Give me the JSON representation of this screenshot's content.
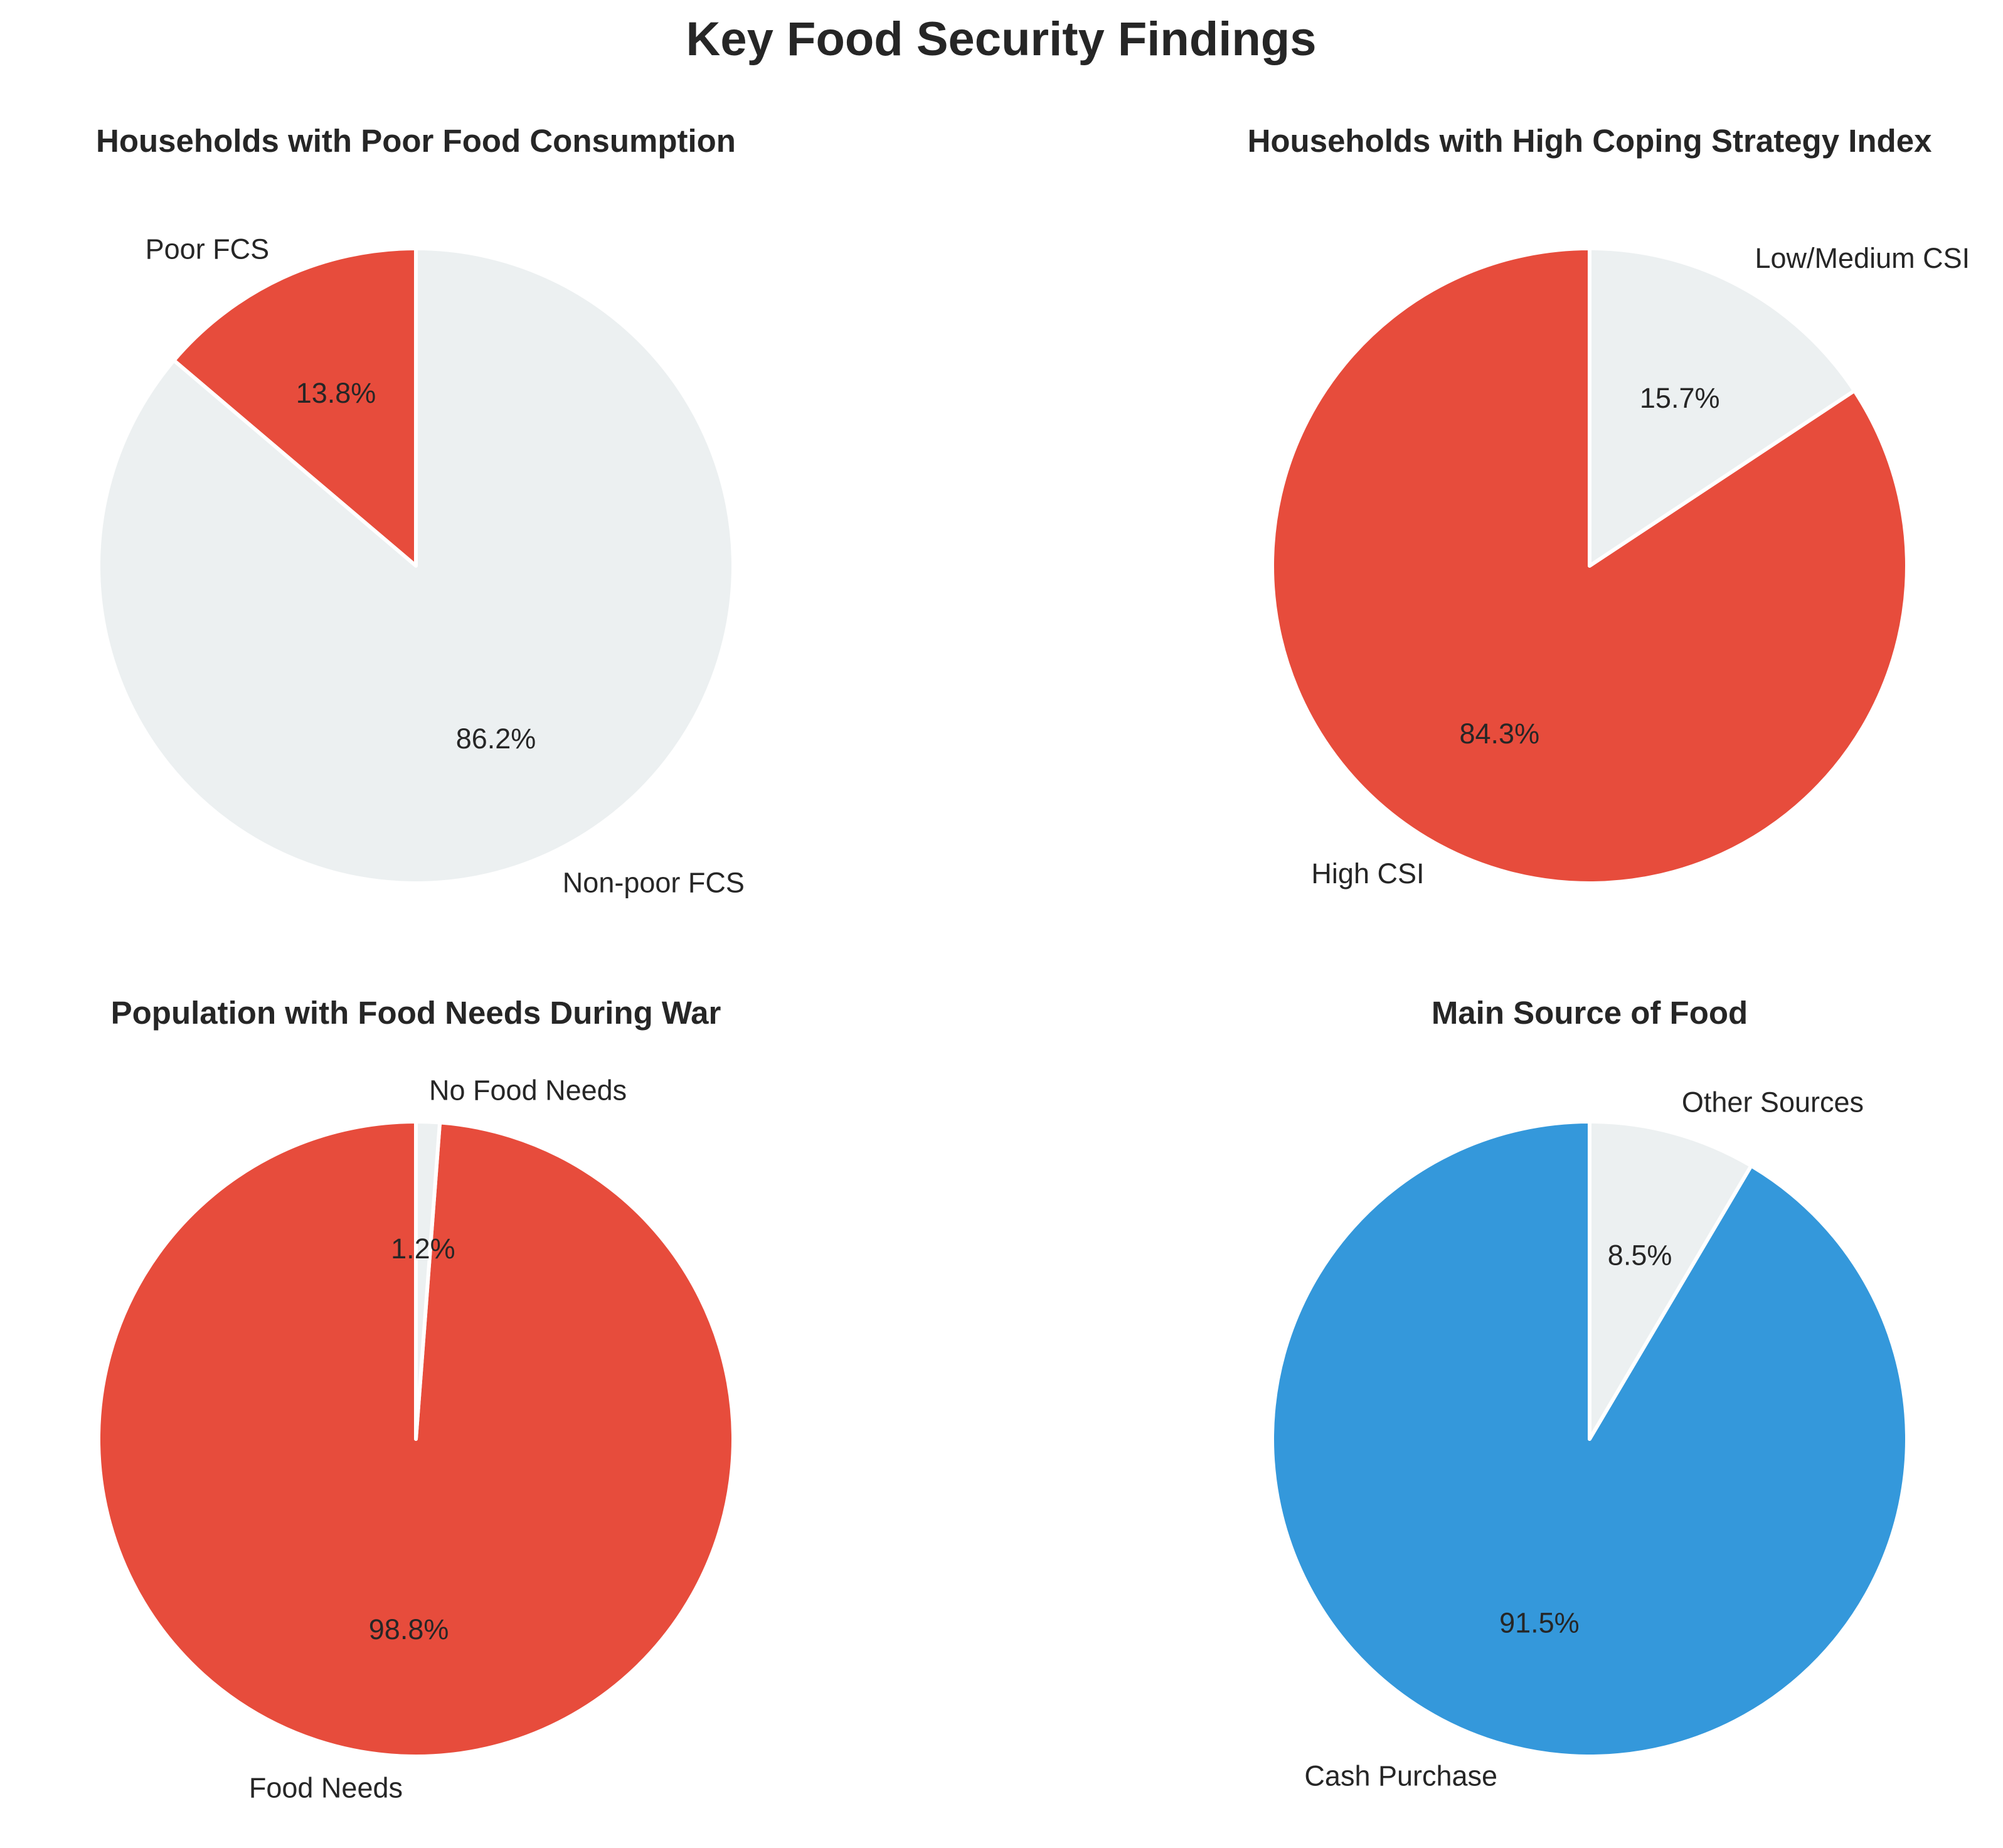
{
  "title": "Key Food Security Findings",
  "chart_data": [
    {
      "type": "pie",
      "title": "Households with Poor Food Consumption",
      "labels": [
        "Poor FCS",
        "Non-poor FCS"
      ],
      "values": [
        13.8,
        86.2
      ],
      "value_labels": [
        "13.8%",
        "86.2%"
      ],
      "colors": [
        "#e74c3c",
        "#ecf0f1"
      ],
      "start_angle_deg": 90,
      "direction": "counterclockwise"
    },
    {
      "type": "pie",
      "title": "Households with High Coping Strategy Index",
      "labels": [
        "High CSI",
        "Low/Medium CSI"
      ],
      "values": [
        84.3,
        15.7
      ],
      "value_labels": [
        "84.3%",
        "15.7%"
      ],
      "colors": [
        "#e74c3c",
        "#ecf0f1"
      ],
      "start_angle_deg": 90,
      "direction": "counterclockwise"
    },
    {
      "type": "pie",
      "title": "Population with Food Needs During War",
      "labels": [
        "Food Needs",
        "No Food Needs"
      ],
      "values": [
        98.8,
        1.2
      ],
      "value_labels": [
        "98.8%",
        "1.2%"
      ],
      "colors": [
        "#e74c3c",
        "#ecf0f1"
      ],
      "start_angle_deg": 90,
      "direction": "counterclockwise"
    },
    {
      "type": "pie",
      "title": "Main Source of Food",
      "labels": [
        "Cash Purchase",
        "Other Sources"
      ],
      "values": [
        91.5,
        8.5
      ],
      "value_labels": [
        "91.5%",
        "8.5%"
      ],
      "colors": [
        "#3498db",
        "#ecf0f1"
      ],
      "start_angle_deg": 90,
      "direction": "counterclockwise"
    }
  ]
}
